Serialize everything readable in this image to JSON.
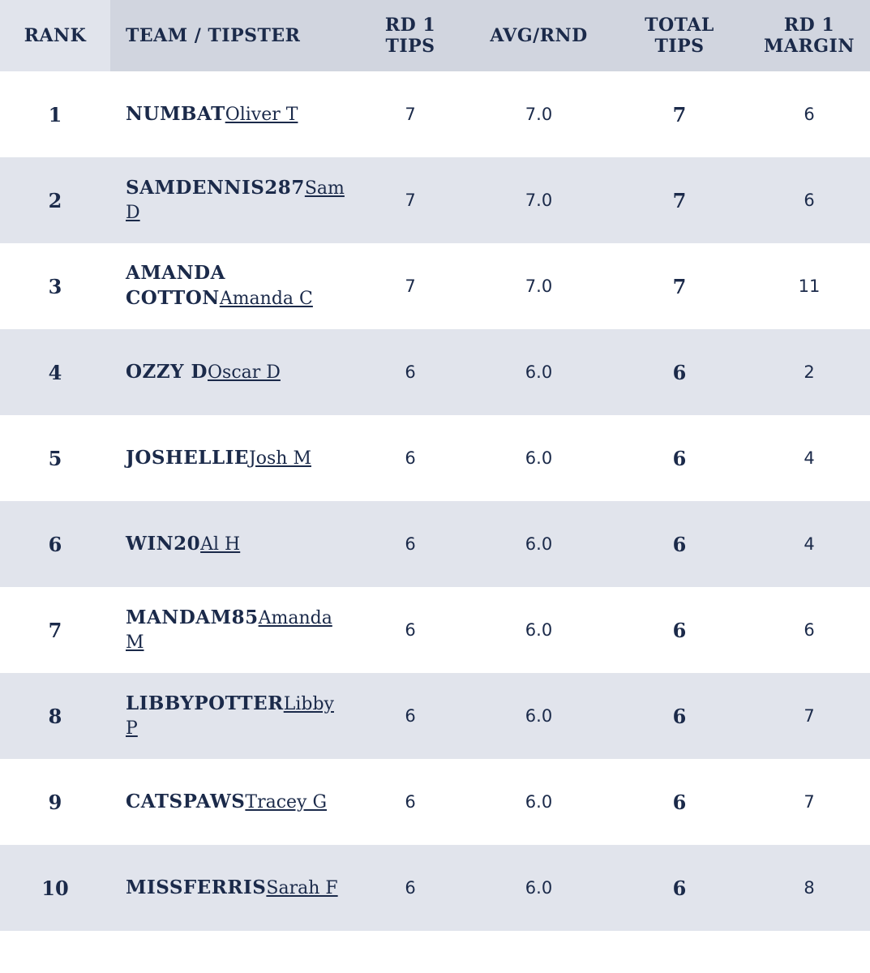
{
  "headers": {
    "rank": "RANK",
    "team": "TEAM / TIPSTER",
    "rd1_tips": [
      "RD 1",
      "TIPS"
    ],
    "avg": "AVG/RND",
    "total_tips": [
      "TOTAL",
      "TIPS"
    ],
    "rd1_margin": [
      "RD 1",
      "MARGIN"
    ]
  },
  "rows": [
    {
      "rank": "1",
      "team": "NUMBAT",
      "tipster": "Oliver T",
      "rd1_tips": "7",
      "avg": "7.0",
      "total": "7",
      "margin": "6"
    },
    {
      "rank": "2",
      "team": "SAMDENNIS287",
      "tipster": "Sam D",
      "rd1_tips": "7",
      "avg": "7.0",
      "total": "7",
      "margin": "6"
    },
    {
      "rank": "3",
      "team": "AMANDA COTTON",
      "tipster": "Amanda C",
      "rd1_tips": "7",
      "avg": "7.0",
      "total": "7",
      "margin": "11"
    },
    {
      "rank": "4",
      "team": "OZZY D",
      "tipster": "Oscar D",
      "rd1_tips": "6",
      "avg": "6.0",
      "total": "6",
      "margin": "2"
    },
    {
      "rank": "5",
      "team": "JOSHELLIE",
      "tipster": "Josh M",
      "rd1_tips": "6",
      "avg": "6.0",
      "total": "6",
      "margin": "4"
    },
    {
      "rank": "6",
      "team": "WIN20",
      "tipster": "Al H",
      "rd1_tips": "6",
      "avg": "6.0",
      "total": "6",
      "margin": "4"
    },
    {
      "rank": "7",
      "team": "MANDAM85",
      "tipster": "Amanda M",
      "rd1_tips": "6",
      "avg": "6.0",
      "total": "6",
      "margin": "6"
    },
    {
      "rank": "8",
      "team": "LIBBYPOTTER",
      "tipster": "Libby P",
      "rd1_tips": "6",
      "avg": "6.0",
      "total": "6",
      "margin": "7"
    },
    {
      "rank": "9",
      "team": "CATSPAWS",
      "tipster": "Tracey G",
      "rd1_tips": "6",
      "avg": "6.0",
      "total": "6",
      "margin": "7"
    },
    {
      "rank": "10",
      "team": "MISSFERRIS",
      "tipster": "Sarah F",
      "rd1_tips": "6",
      "avg": "6.0",
      "total": "6",
      "margin": "8"
    }
  ]
}
